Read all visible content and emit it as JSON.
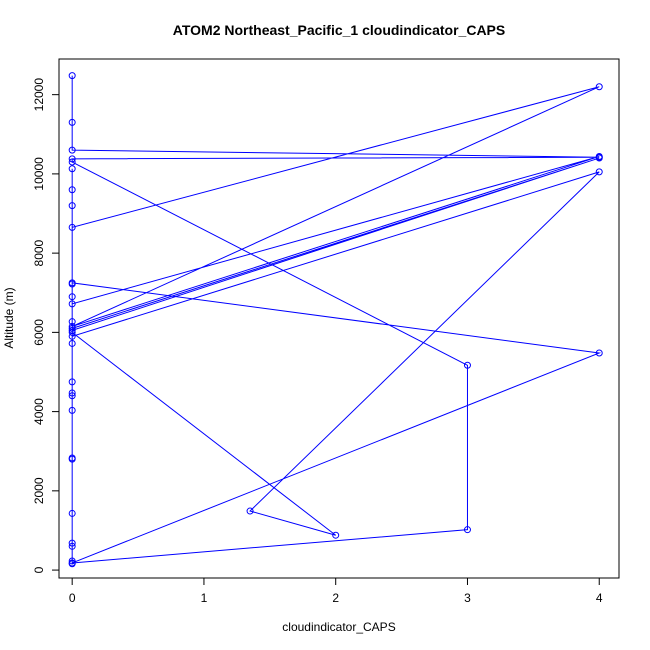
{
  "chart_data": {
    "type": "line",
    "title": "ATOM2 Northeast_Pacific_1 cloudindicator_CAPS",
    "xlabel": "cloudindicator_CAPS",
    "ylabel": "Altitude (m)",
    "xlim": [
      -0.1,
      4.15
    ],
    "ylim": [
      -200,
      12900
    ],
    "xticks": [
      0,
      1,
      2,
      3,
      4
    ],
    "yticks": [
      0,
      2000,
      4000,
      6000,
      8000,
      10000,
      12000
    ],
    "grid": false,
    "legend": "none",
    "color": "#0000ff",
    "marker": "open-circle",
    "series": [
      {
        "points": [
          [
            0,
            12480
          ],
          [
            0,
            11300
          ],
          [
            0,
            10600
          ],
          [
            4,
            10420
          ],
          [
            0,
            10380
          ],
          [
            0,
            10300
          ],
          [
            3,
            5170
          ],
          [
            3,
            1020
          ],
          [
            0,
            180
          ],
          [
            4,
            5480
          ],
          [
            0,
            7250
          ],
          [
            0,
            7220
          ],
          [
            0,
            6900
          ],
          [
            0,
            6720
          ],
          [
            4,
            10440
          ],
          [
            0,
            6150
          ],
          [
            4,
            12200
          ],
          [
            0,
            8650
          ],
          [
            0,
            9200
          ],
          [
            0,
            9600
          ],
          [
            0,
            10130
          ],
          [
            0,
            6270
          ],
          [
            0,
            6100
          ],
          [
            4,
            10400
          ],
          [
            0,
            6050
          ],
          [
            0,
            5900
          ],
          [
            4,
            10050
          ],
          [
            1.35,
            1490
          ],
          [
            2,
            880
          ],
          [
            0,
            6000
          ],
          [
            0,
            5720
          ],
          [
            0,
            4750
          ],
          [
            0,
            4470
          ],
          [
            0,
            4400
          ],
          [
            0,
            4030
          ],
          [
            0,
            2830
          ],
          [
            0,
            2800
          ],
          [
            0,
            1430
          ],
          [
            0,
            680
          ],
          [
            0,
            600
          ],
          [
            0,
            230
          ],
          [
            0,
            160
          ]
        ]
      }
    ]
  }
}
